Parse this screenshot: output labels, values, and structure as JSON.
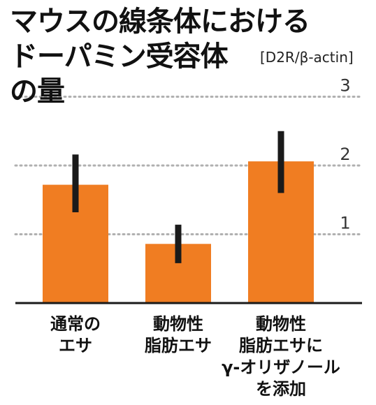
{
  "title_lines": [
    "マウスの線条体における",
    "ドーパミン受容体",
    "の量"
  ],
  "unit_label": "[D2R/β-actin]",
  "chart_data": {
    "type": "bar",
    "title": "マウスの線条体におけるドーパミン受容体の量",
    "ylabel": "[D2R/β-actin]",
    "ylim": [
      0,
      3
    ],
    "yticks": [
      1,
      2,
      3
    ],
    "grid": true,
    "categories": [
      [
        "通常の",
        "エサ"
      ],
      [
        "動物性",
        "脂肪エサ"
      ],
      [
        "動物性",
        "脂肪エサに",
        "γ-オリザノール",
        "を添加"
      ]
    ],
    "values": [
      1.72,
      0.86,
      2.06
    ],
    "error_low": [
      1.32,
      0.58,
      1.6
    ],
    "error_high": [
      2.16,
      1.14,
      2.5
    ],
    "bar_color": "#F07D22",
    "error_color": "#1A1A1A",
    "grid_color": "#B0B0B0"
  }
}
